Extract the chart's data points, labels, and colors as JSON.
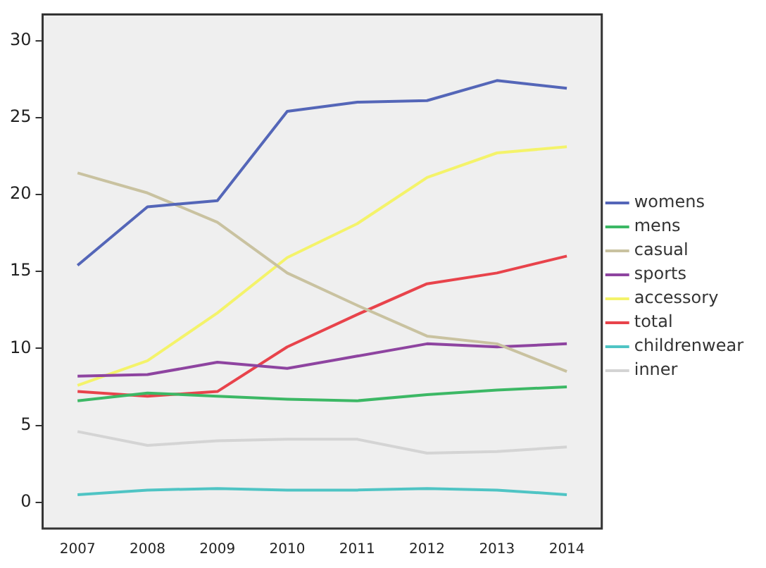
{
  "chart_data": {
    "type": "line",
    "categories": [
      "2007",
      "2008",
      "2009",
      "2010",
      "2011",
      "2012",
      "2013",
      "2014"
    ],
    "series": [
      {
        "name": "womens",
        "color": "#5466b8",
        "values": [
          15.4,
          19.2,
          19.6,
          25.4,
          26.0,
          26.1,
          27.4,
          26.9
        ]
      },
      {
        "name": "mens",
        "color": "#3cb865",
        "values": [
          6.6,
          7.1,
          6.9,
          6.7,
          6.6,
          7.0,
          7.3,
          7.5
        ]
      },
      {
        "name": "casual",
        "color": "#c9c2a0",
        "values": [
          21.4,
          20.1,
          18.2,
          14.9,
          12.8,
          10.8,
          10.3,
          8.5
        ]
      },
      {
        "name": "sports",
        "color": "#8e44a0",
        "values": [
          8.2,
          8.3,
          9.1,
          8.7,
          9.5,
          10.3,
          10.1,
          10.3
        ]
      },
      {
        "name": "accessory",
        "color": "#f4f36a",
        "values": [
          7.6,
          9.2,
          12.3,
          15.9,
          18.1,
          21.1,
          22.7,
          23.1
        ]
      },
      {
        "name": "total",
        "color": "#e8434b",
        "values": [
          7.2,
          6.9,
          7.2,
          10.1,
          12.2,
          14.2,
          14.9,
          16.0
        ]
      },
      {
        "name": "childrenwear",
        "color": "#4fc4c4",
        "values": [
          0.5,
          0.8,
          0.9,
          0.8,
          0.8,
          0.9,
          0.8,
          0.5
        ]
      },
      {
        "name": "inner",
        "color": "#d4d4d4",
        "values": [
          4.6,
          3.7,
          4.0,
          4.1,
          4.1,
          3.2,
          3.3,
          3.6
        ]
      }
    ],
    "ylim": [
      -1.7,
      31.7
    ],
    "yticks": [
      0,
      5,
      10,
      15,
      20,
      25,
      30
    ],
    "grid": false,
    "legend": "right",
    "marker": "none",
    "line_style": "solid"
  }
}
